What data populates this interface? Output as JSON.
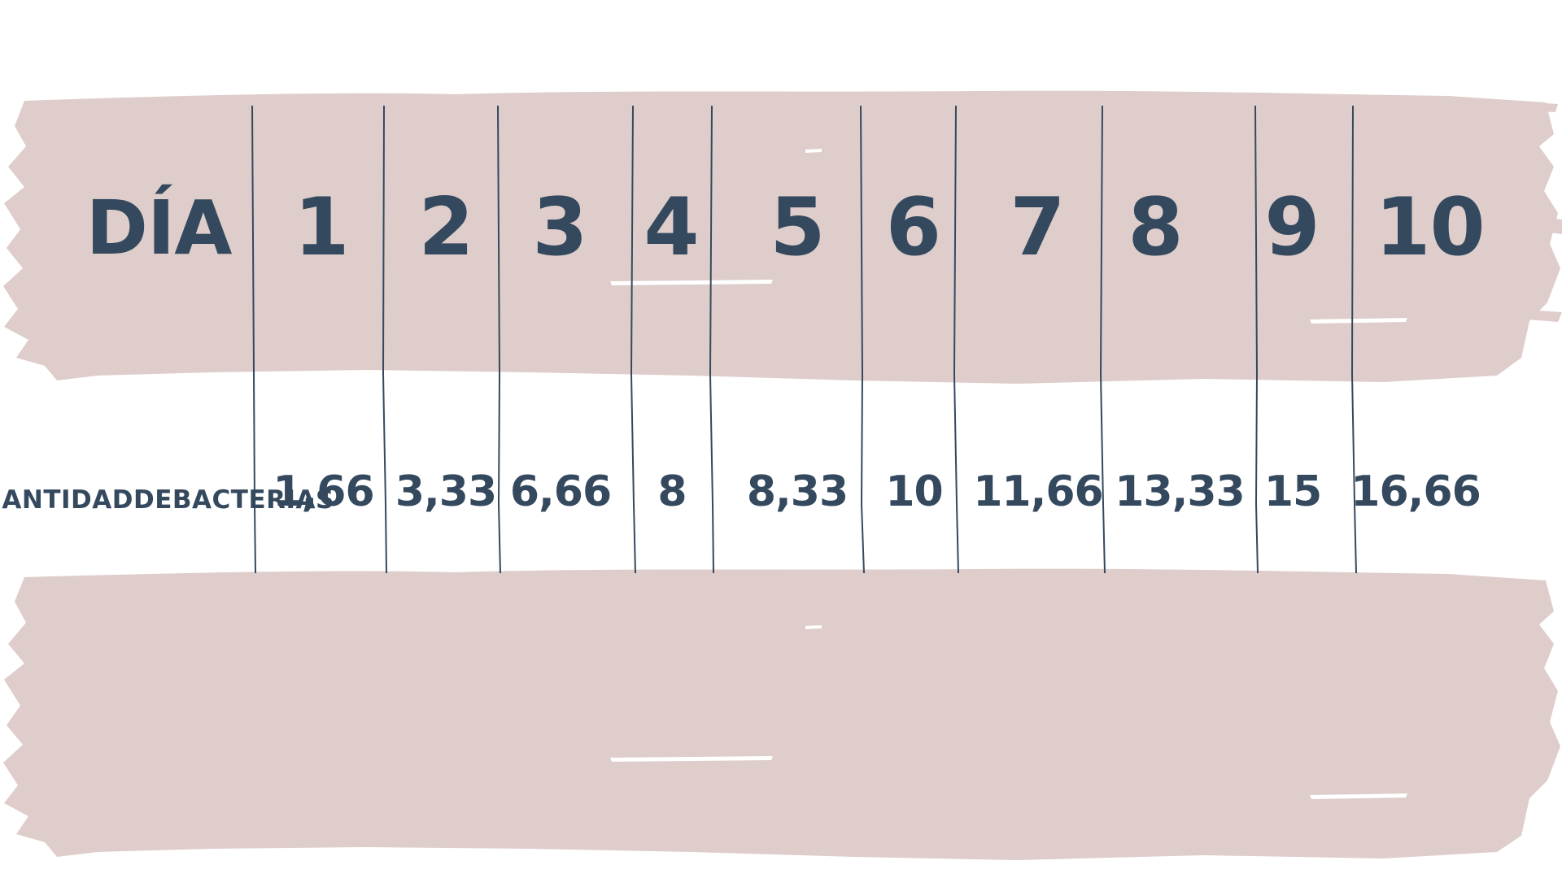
{
  "table": {
    "header_label": "DÍA",
    "row_label_lines": [
      "CANTIDAD",
      "DE",
      "BACTERIAS"
    ],
    "days": [
      "1",
      "2",
      "3",
      "4",
      "5",
      "6",
      "7",
      "8",
      "9",
      "10"
    ],
    "values": [
      "1,66",
      "3,33",
      "6,66",
      "8",
      "8,33",
      "10",
      "11,66",
      "13,33",
      "15",
      "16,66"
    ]
  },
  "colors": {
    "brush": "#decdcb",
    "text": "#34495e",
    "divider": "#34495e",
    "background": "#ffffff"
  }
}
